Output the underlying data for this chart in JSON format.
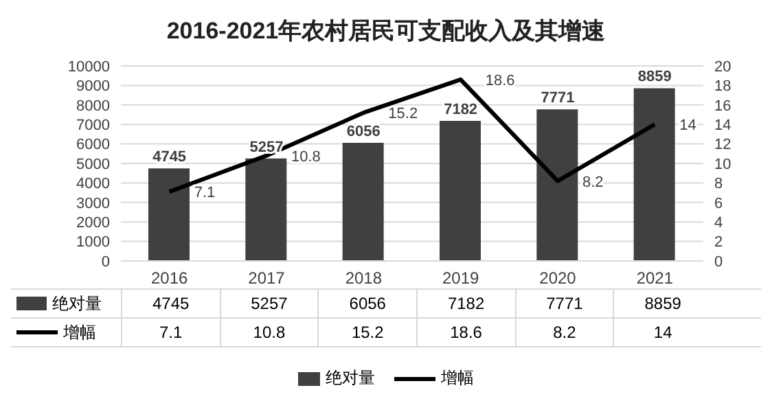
{
  "chart_data": {
    "type": "bar",
    "title": "2016-2021年农村居民可支配收入及其增速",
    "categories": [
      "2016",
      "2017",
      "2018",
      "2019",
      "2020",
      "2021"
    ],
    "series": [
      {
        "name": "绝对量",
        "color": "#404040",
        "values": [
          4745,
          5257,
          6056,
          7182,
          7771,
          8859
        ]
      },
      {
        "name": "增幅",
        "type": "line",
        "axis": "y2",
        "color": "#000000",
        "values": [
          7.1,
          10.8,
          15.2,
          18.6,
          8.2,
          14
        ]
      }
    ],
    "annotations": [
      {
        "text": "4745",
        "x": "2016",
        "y": 4745
      },
      {
        "text": "5257",
        "x": "2017",
        "y": 5257
      },
      {
        "text": "6056",
        "x": "2018",
        "y": 6056
      },
      {
        "text": "7182",
        "x": "2019",
        "y": 7182
      },
      {
        "text": "7771",
        "x": "2020",
        "y": 7771
      },
      {
        "text": "8859",
        "x": "2021",
        "y": 8859
      },
      "7.1",
      "10.8",
      "15.2",
      "18.6",
      "8.2",
      "14"
    ],
    "ylim": [
      0,
      10000
    ],
    "yticks": [
      0,
      1000,
      2000,
      3000,
      4000,
      5000,
      6000,
      7000,
      8000,
      9000,
      10000
    ],
    "y2lim": [
      0,
      20
    ],
    "y2ticks": [
      0,
      2,
      4,
      6,
      8,
      10,
      12,
      14,
      16,
      18,
      20
    ],
    "grid": "y",
    "legend": "bottom",
    "data_labels": true,
    "marker": "none",
    "line_style": "solid"
  }
}
